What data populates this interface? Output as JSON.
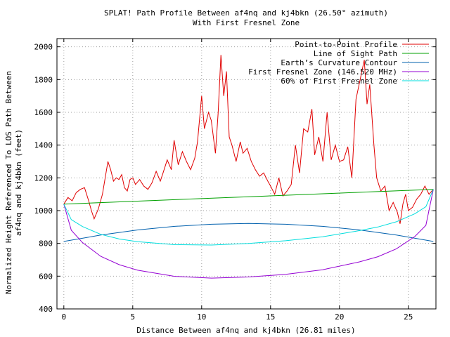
{
  "chart_data": {
    "type": "line",
    "title": "SPLAT! Path Profile Between af4nq and kj4bkn (26.50° azimuth)",
    "subtitle": "With First Fresnel Zone",
    "xlabel": "Distance Between af4nq and kj4bkn (26.81 miles)",
    "ylabel_line1": "Normalized Height Referenced To LOS Path Between",
    "ylabel_line2": "af4nq and kj4bkn (feet)",
    "xlim": [
      -0.5,
      27.0
    ],
    "ylim": [
      400,
      2050
    ],
    "x_ticks": [
      0,
      5,
      10,
      15,
      20,
      25
    ],
    "x_tick_labels": [
      "0",
      "5",
      "10",
      "15",
      "20",
      "25"
    ],
    "y_ticks": [
      400,
      600,
      800,
      1000,
      1200,
      1400,
      1600,
      1800,
      2000
    ],
    "y_tick_labels": [
      "400",
      "600",
      "800",
      "1000",
      "1200",
      "1400",
      "1600",
      "1800",
      "2000"
    ],
    "grid": true,
    "legend_position": "top-right",
    "series": [
      {
        "name": "Point-to-Point Profile",
        "color": "#e00000",
        "x": [
          0.0,
          0.3,
          0.6,
          0.9,
          1.2,
          1.5,
          1.8,
          2.0,
          2.2,
          2.5,
          2.8,
          3.0,
          3.2,
          3.4,
          3.6,
          3.8,
          4.0,
          4.2,
          4.4,
          4.6,
          4.8,
          5.0,
          5.2,
          5.5,
          5.8,
          6.1,
          6.4,
          6.7,
          7.0,
          7.2,
          7.5,
          7.8,
          8.0,
          8.3,
          8.6,
          8.9,
          9.2,
          9.5,
          9.7,
          10.0,
          10.2,
          10.5,
          10.7,
          11.0,
          11.2,
          11.4,
          11.6,
          11.8,
          12.0,
          12.2,
          12.5,
          12.8,
          13.0,
          13.3,
          13.6,
          13.9,
          14.2,
          14.5,
          14.8,
          15.0,
          15.3,
          15.6,
          15.9,
          16.2,
          16.5,
          16.8,
          17.1,
          17.4,
          17.7,
          18.0,
          18.2,
          18.5,
          18.8,
          19.1,
          19.4,
          19.7,
          20.0,
          20.3,
          20.6,
          20.9,
          21.2,
          21.5,
          21.8,
          22.0,
          22.2,
          22.5,
          22.7,
          23.0,
          23.3,
          23.6,
          23.9,
          24.2,
          24.4,
          24.6,
          24.8,
          25.0,
          25.3,
          25.6,
          25.9,
          26.2,
          26.5,
          26.81
        ],
        "y": [
          1040,
          1080,
          1060,
          1110,
          1130,
          1140,
          1060,
          1000,
          950,
          1010,
          1100,
          1200,
          1300,
          1250,
          1180,
          1200,
          1190,
          1220,
          1140,
          1120,
          1190,
          1200,
          1160,
          1190,
          1150,
          1130,
          1170,
          1240,
          1180,
          1230,
          1310,
          1250,
          1430,
          1280,
          1360,
          1300,
          1250,
          1320,
          1420,
          1700,
          1500,
          1600,
          1550,
          1350,
          1600,
          1950,
          1700,
          1850,
          1450,
          1400,
          1300,
          1420,
          1350,
          1380,
          1300,
          1250,
          1210,
          1230,
          1180,
          1150,
          1100,
          1200,
          1090,
          1120,
          1160,
          1400,
          1230,
          1500,
          1480,
          1620,
          1340,
          1450,
          1300,
          1600,
          1310,
          1400,
          1300,
          1310,
          1390,
          1200,
          1680,
          1800,
          1920,
          1650,
          1770,
          1400,
          1200,
          1120,
          1150,
          1000,
          1050,
          990,
          920,
          1040,
          1100,
          1000,
          1020,
          1070,
          1100,
          1150,
          1100,
          1130
        ]
      },
      {
        "name": "Line of Sight Path",
        "color": "#00a000",
        "x": [
          0.0,
          26.81
        ],
        "y": [
          1040,
          1130
        ]
      },
      {
        "name": "Earth’s Curvature Contour",
        "color": "#0060ad",
        "x": [
          0.0,
          2.68,
          5.36,
          8.04,
          10.72,
          13.4,
          16.09,
          18.77,
          21.45,
          24.13,
          26.81
        ],
        "y": [
          812,
          851,
          882,
          904,
          917,
          922,
          917,
          904,
          882,
          851,
          812
        ]
      },
      {
        "name": "First Fresnel Zone (146.520 MHz)",
        "color": "#9400d3",
        "x": [
          0.0,
          0.54,
          1.34,
          2.68,
          4.02,
          5.36,
          8.04,
          10.72,
          13.4,
          16.09,
          18.77,
          21.45,
          22.79,
          24.13,
          25.47,
          26.27,
          26.81
        ],
        "y": [
          1040,
          880,
          806,
          721,
          670,
          636,
          599,
          588,
          595,
          611,
          639,
          687,
          719,
          767,
          842,
          910,
          1130
        ]
      },
      {
        "name": "60% of First Fresnel Zone",
        "color": "#00dddd",
        "x": [
          0.0,
          0.54,
          1.34,
          2.68,
          4.02,
          5.36,
          8.04,
          10.72,
          13.4,
          16.09,
          18.77,
          21.45,
          22.79,
          24.13,
          25.47,
          26.27,
          26.81
        ],
        "y": [
          1040,
          945,
          903,
          855,
          827,
          810,
          792,
          790,
          800,
          816,
          840,
          878,
          900,
          932,
          981,
          1024,
          1130
        ]
      }
    ]
  }
}
